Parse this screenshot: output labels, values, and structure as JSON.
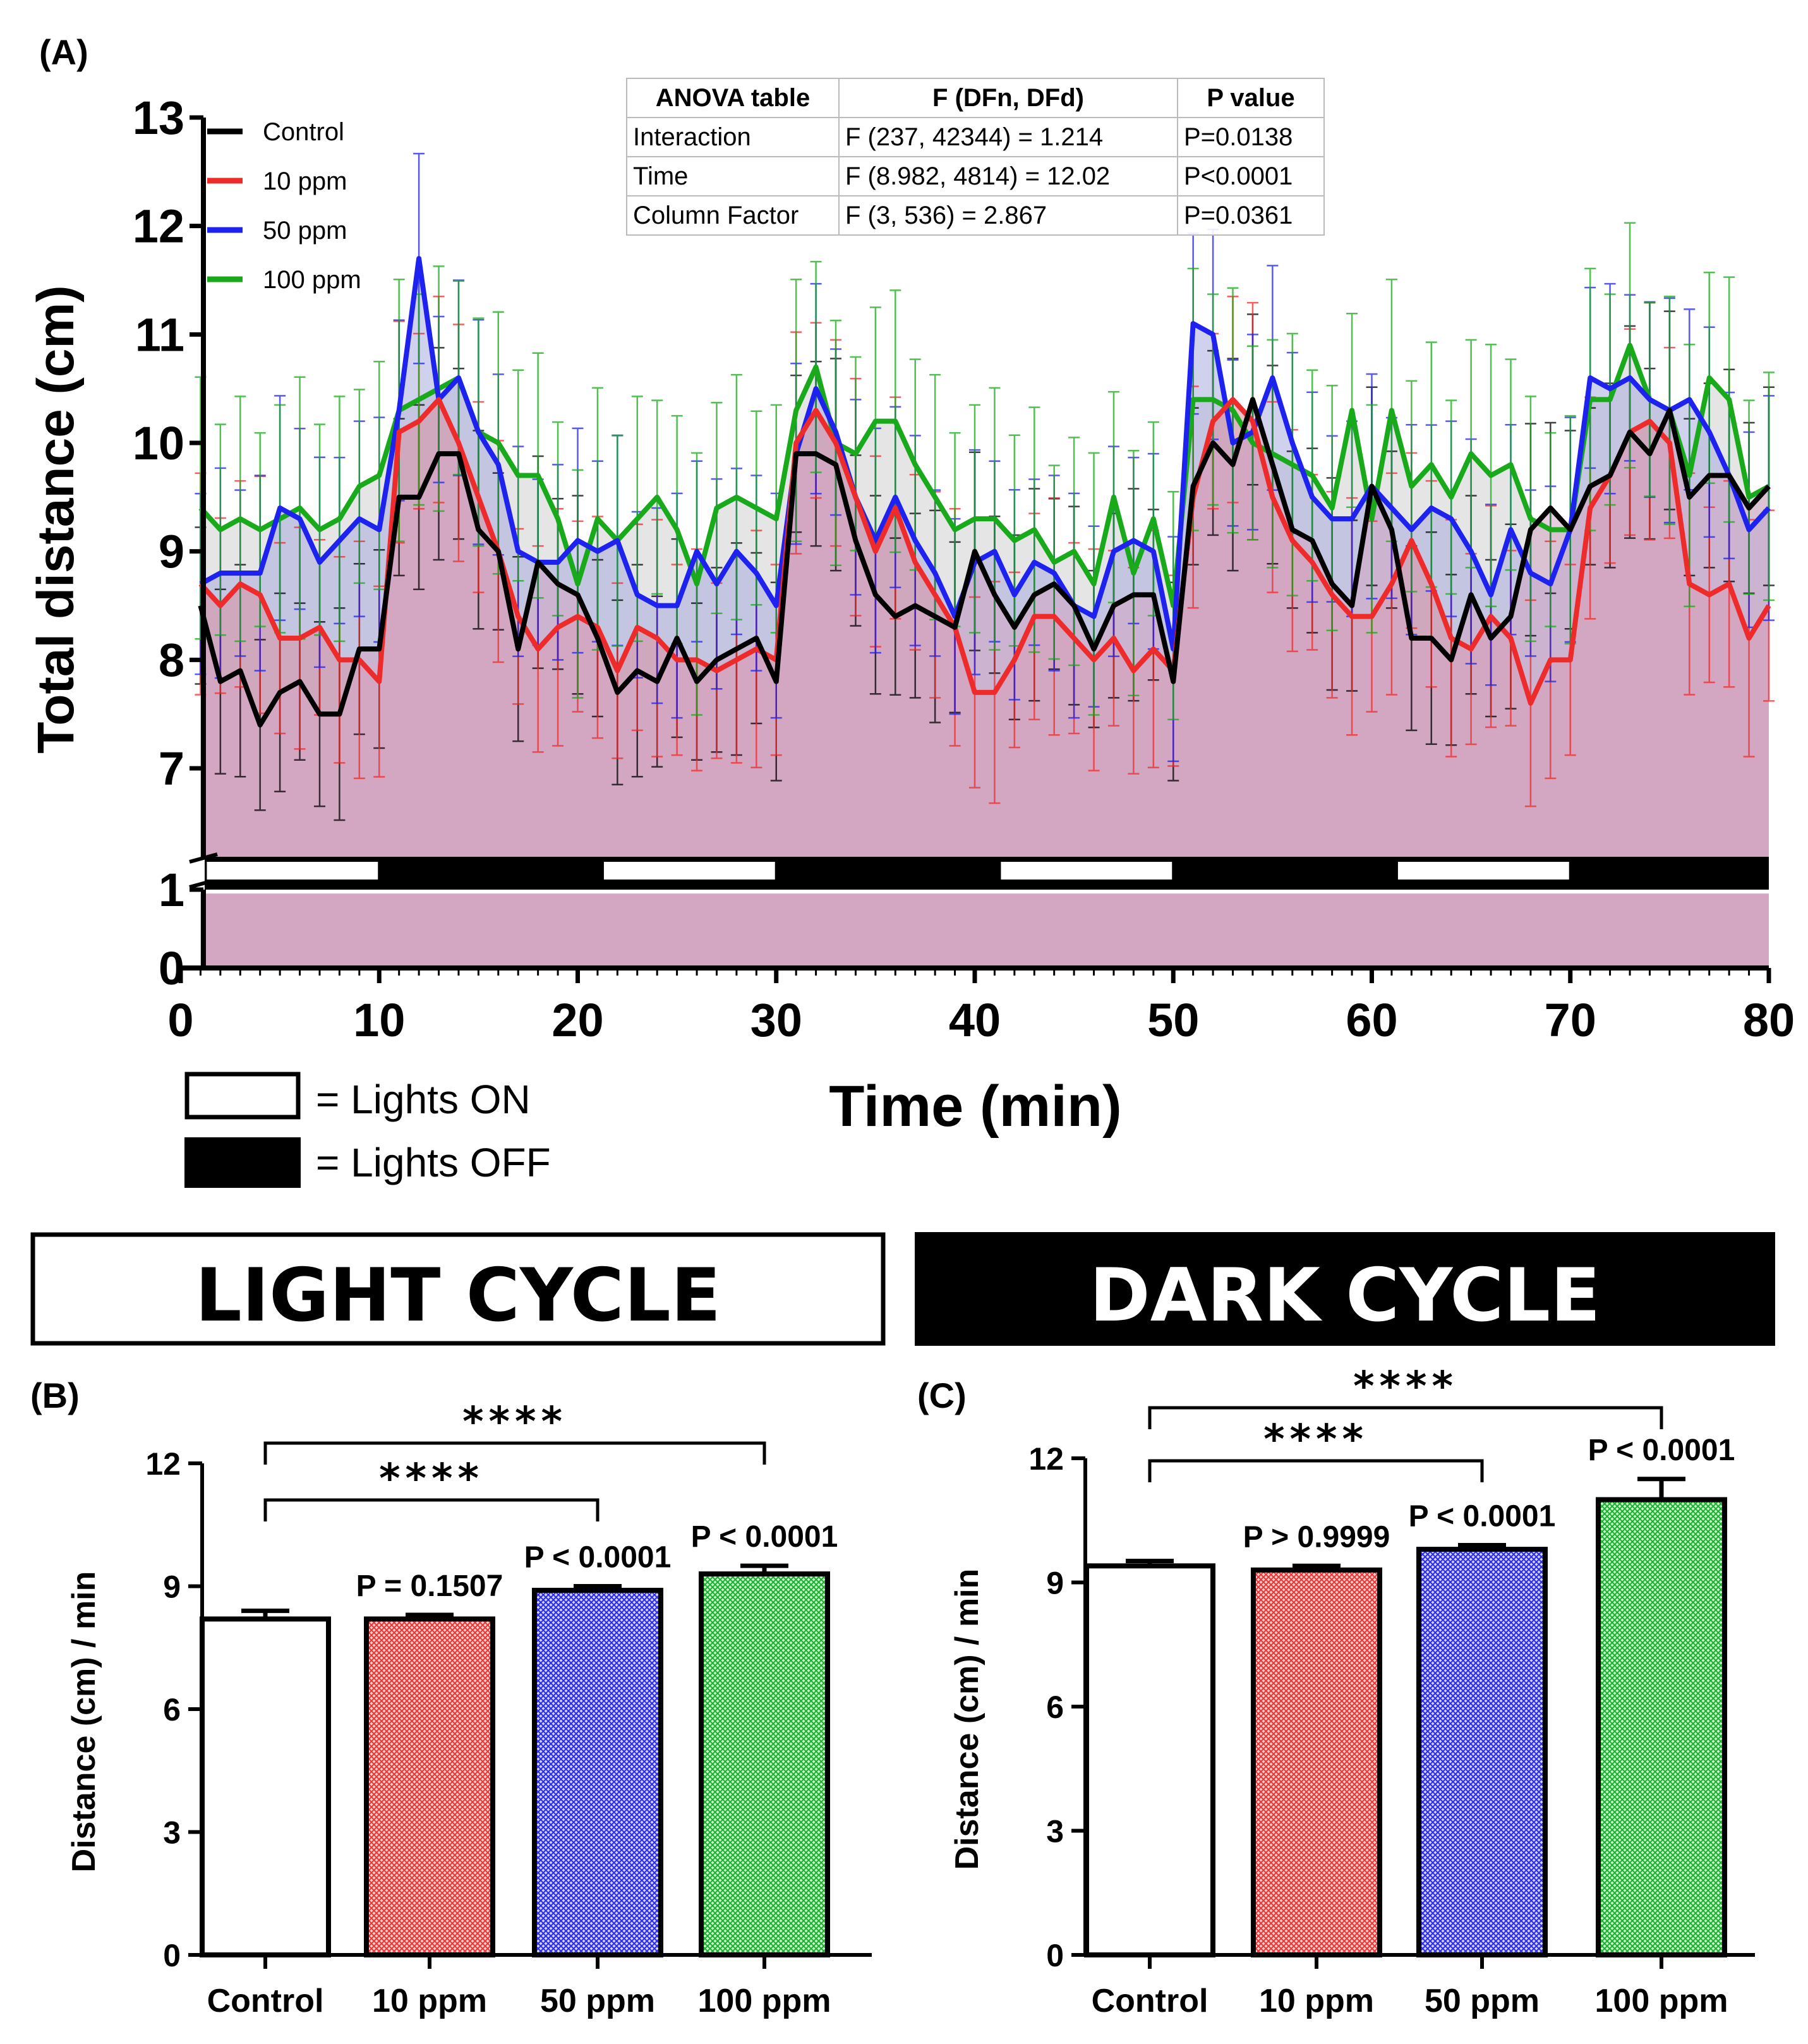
{
  "chart_data": [
    {
      "panel": "(A)",
      "type": "line",
      "xlabel": "Time (min)",
      "ylabel": "Total distance (cm)",
      "xlim": [
        0,
        80
      ],
      "xticks": [
        "0",
        "10",
        "20",
        "30",
        "40",
        "50",
        "60",
        "70",
        "80"
      ],
      "yticks_upper": [
        "7",
        "8",
        "9",
        "10",
        "11",
        "12",
        "13"
      ],
      "yticks_lower": [
        "0",
        "1"
      ],
      "legend_position": "top-left",
      "series": [
        {
          "name": "Control",
          "color": "#000000",
          "values": [
            8.5,
            7.8,
            7.9,
            7.4,
            7.7,
            7.8,
            7.5,
            7.5,
            8.1,
            8.1,
            9.5,
            9.5,
            9.9,
            9.9,
            9.2,
            9.0,
            8.1,
            8.9,
            8.7,
            8.6,
            8.2,
            7.7,
            7.9,
            7.8,
            8.2,
            7.8,
            8.0,
            8.1,
            8.2,
            7.8,
            9.9,
            9.9,
            9.8,
            9.1,
            8.6,
            8.4,
            8.5,
            8.4,
            8.3,
            9.0,
            8.6,
            8.3,
            8.6,
            8.7,
            8.5,
            8.1,
            8.5,
            8.6,
            8.6,
            7.8,
            9.6,
            10.0,
            9.8,
            10.4,
            9.8,
            9.2,
            9.1,
            8.7,
            8.5,
            9.6,
            9.2,
            8.2,
            8.2,
            8.0,
            8.6,
            8.2,
            8.4,
            9.2,
            9.4,
            9.2,
            9.6,
            9.7,
            10.1,
            9.9,
            10.3,
            9.5,
            9.7,
            9.7,
            9.4,
            9.6
          ]
        },
        {
          "name": "10 ppm",
          "color": "#ee2b2b",
          "values": [
            8.7,
            8.5,
            8.7,
            8.6,
            8.2,
            8.2,
            8.3,
            8.0,
            8.0,
            7.8,
            10.1,
            10.2,
            10.4,
            10.0,
            9.5,
            9.0,
            8.4,
            8.1,
            8.3,
            8.4,
            8.3,
            7.9,
            8.3,
            8.2,
            8.0,
            8.0,
            7.9,
            8.0,
            8.1,
            8.0,
            10.0,
            10.3,
            10.0,
            9.5,
            9.0,
            9.4,
            8.9,
            8.6,
            8.3,
            7.7,
            7.7,
            8.0,
            8.4,
            8.4,
            8.2,
            8.0,
            8.2,
            7.9,
            8.1,
            7.9,
            9.5,
            10.2,
            10.4,
            10.2,
            9.5,
            9.1,
            8.9,
            8.6,
            8.4,
            8.4,
            8.7,
            9.1,
            8.7,
            8.2,
            8.1,
            8.4,
            8.2,
            7.6,
            8.0,
            8.0,
            9.4,
            9.7,
            10.1,
            10.2,
            10.0,
            8.7,
            8.6,
            8.7,
            8.2,
            8.5
          ]
        },
        {
          "name": "50 ppm",
          "color": "#1e22ee",
          "values": [
            8.7,
            8.8,
            8.8,
            8.8,
            9.4,
            9.3,
            8.9,
            9.1,
            9.3,
            9.2,
            10.3,
            11.7,
            10.4,
            10.6,
            10.1,
            9.8,
            9.0,
            8.9,
            8.9,
            9.1,
            9.0,
            9.1,
            8.6,
            8.5,
            8.5,
            9.0,
            8.7,
            9.0,
            8.8,
            8.5,
            9.9,
            10.5,
            10.1,
            9.5,
            9.1,
            9.5,
            9.1,
            8.8,
            8.4,
            8.9,
            9.0,
            8.6,
            8.9,
            8.8,
            8.5,
            8.4,
            9.0,
            9.1,
            9.0,
            8.1,
            11.1,
            11.0,
            10.0,
            10.1,
            10.6,
            10.0,
            9.5,
            9.3,
            9.3,
            9.6,
            9.4,
            9.2,
            9.4,
            9.3,
            9.0,
            8.6,
            9.2,
            8.8,
            8.7,
            9.2,
            10.6,
            10.5,
            10.6,
            10.4,
            10.3,
            10.4,
            10.1,
            9.7,
            9.2,
            9.4
          ]
        },
        {
          "name": "100 ppm",
          "color": "#18aa1a",
          "values": [
            9.4,
            9.2,
            9.3,
            9.2,
            9.3,
            9.4,
            9.2,
            9.3,
            9.6,
            9.7,
            10.3,
            10.4,
            10.5,
            10.6,
            10.1,
            10.0,
            9.7,
            9.7,
            9.3,
            8.7,
            9.3,
            9.1,
            9.3,
            9.5,
            9.2,
            8.7,
            9.4,
            9.5,
            9.4,
            9.3,
            10.3,
            10.7,
            10.0,
            9.9,
            10.2,
            10.2,
            9.8,
            9.5,
            9.2,
            9.3,
            9.3,
            9.1,
            9.2,
            8.9,
            9.0,
            8.7,
            9.5,
            8.8,
            9.3,
            8.5,
            10.4,
            10.4,
            10.3,
            10.0,
            9.9,
            9.8,
            9.7,
            9.4,
            10.3,
            9.3,
            10.3,
            9.6,
            9.8,
            9.5,
            9.9,
            9.7,
            9.8,
            9.3,
            9.2,
            9.2,
            10.4,
            10.4,
            10.9,
            10.4,
            10.3,
            9.7,
            10.6,
            10.4,
            9.5,
            9.6
          ]
        }
      ],
      "light_cycle_legend": {
        "on": "= Lights ON",
        "off": "= Lights OFF"
      },
      "anova_table": {
        "headers": [
          "ANOVA table",
          "F (DFn, DFd)",
          "P value"
        ],
        "rows": [
          [
            "Interaction",
            "F (237, 42344) = 1.214",
            "P=0.0138"
          ],
          [
            "Time",
            "F (8.982, 4814) = 12.02",
            "P<0.0001"
          ],
          [
            "Column Factor",
            "F (3, 536) = 2.867",
            "P=0.0361"
          ]
        ]
      }
    },
    {
      "panel": "(B)",
      "type": "bar",
      "title": "LIGHT CYCLE",
      "ylabel": "Distance (cm) / min",
      "ylim": [
        0,
        12
      ],
      "yticks": [
        "0",
        "3",
        "6",
        "9",
        "12"
      ],
      "categories": [
        "Control",
        "10 ppm",
        "50 ppm",
        "100 ppm"
      ],
      "values": [
        8.2,
        8.2,
        8.9,
        9.3
      ],
      "errors": [
        0.2,
        0.1,
        0.1,
        0.2
      ],
      "pvalues": [
        "",
        "P = 0.1507",
        "P < 0.0001",
        "P < 0.0001"
      ],
      "significance": [
        {
          "from": "Control",
          "to": "50 ppm",
          "label": "****"
        },
        {
          "from": "Control",
          "to": "100 ppm",
          "label": "****"
        }
      ]
    },
    {
      "panel": "(C)",
      "type": "bar",
      "title": "DARK CYCLE",
      "ylabel": "Distance (cm) / min",
      "ylim": [
        0,
        12
      ],
      "yticks": [
        "0",
        "3",
        "6",
        "9",
        "12"
      ],
      "categories": [
        "Control",
        "10 ppm",
        "50 ppm",
        "100 ppm"
      ],
      "values": [
        9.4,
        9.3,
        9.8,
        11.0
      ],
      "errors": [
        0.12,
        0.1,
        0.1,
        0.5
      ],
      "pvalues": [
        "",
        "P > 0.9999",
        "P < 0.0001",
        "P < 0.0001"
      ],
      "significance": [
        {
          "from": "Control",
          "to": "50 ppm",
          "label": "****"
        },
        {
          "from": "Control",
          "to": "100 ppm",
          "label": "****"
        }
      ]
    }
  ],
  "colors": {
    "control": "#000000",
    "ppm10": "#ee2b2b",
    "ppm50": "#1e22ee",
    "ppm100": "#18aa1a",
    "fill": "#d4a6c3"
  }
}
